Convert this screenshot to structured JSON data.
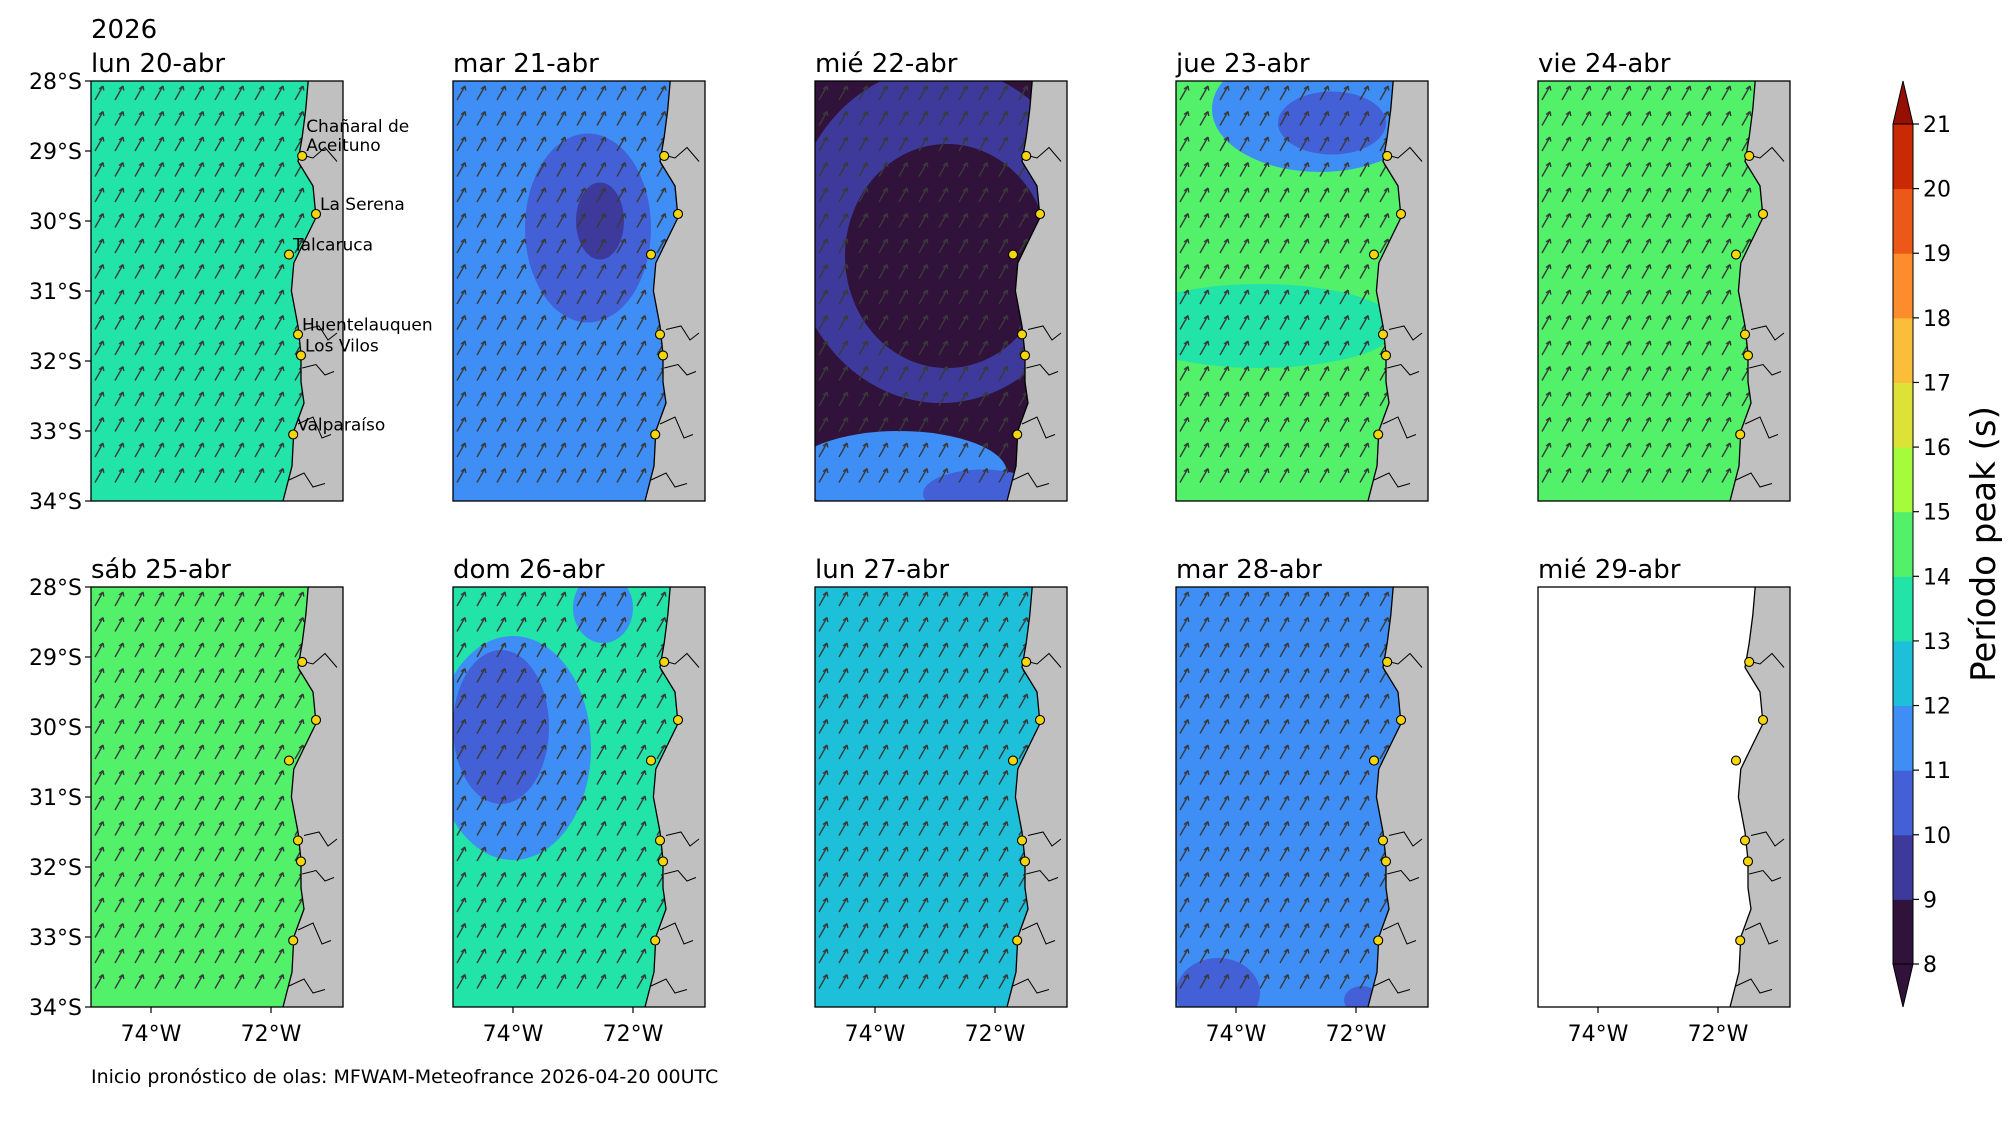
{
  "header": {
    "year": "2026"
  },
  "footer": {
    "text": "Inicio pronóstico de olas: MFWAM-Meteofrance 2026-04-20 00UTC"
  },
  "colorbar": {
    "label": "Período peak (s)",
    "ticks": [
      "8",
      "9",
      "10",
      "11",
      "12",
      "13",
      "14",
      "15",
      "16",
      "17",
      "18",
      "19",
      "20",
      "21"
    ],
    "colors": [
      "#30123b",
      "#3d3a9c",
      "#4360d6",
      "#3e8ef5",
      "#1ebfd9",
      "#22e3a8",
      "#53f06a",
      "#a4fc3c",
      "#dde236",
      "#fbbe3a",
      "#fd8d2c",
      "#ec5818",
      "#c92a04",
      "#951003"
    ],
    "extend": "both"
  },
  "axes": {
    "lat_ticks": [
      "28°S",
      "29°S",
      "30°S",
      "31°S",
      "32°S",
      "33°S",
      "34°S"
    ],
    "lon_ticks": [
      "74°W",
      "72°W"
    ],
    "lat_values": [
      -28,
      -29,
      -30,
      -31,
      -32,
      -33,
      -34
    ],
    "lon_values": [
      -74,
      -72
    ],
    "lon_range": [
      -75.0,
      -70.8
    ],
    "lat_range": [
      -34.0,
      -28.0
    ]
  },
  "land_color": "#c0c0c0",
  "point_color": "#f5d60a",
  "places": [
    {
      "name": "Chañaral de\nAceituno",
      "lon": -71.48,
      "lat": -29.07
    },
    {
      "name": "La Serena",
      "lon": -71.25,
      "lat": -29.9
    },
    {
      "name": "Talcaruca",
      "lon": -71.7,
      "lat": -30.48
    },
    {
      "name": "Huentelauquen",
      "lon": -71.55,
      "lat": -31.62
    },
    {
      "name": "Los Vilos",
      "lon": -71.5,
      "lat": -31.92
    },
    {
      "name": "Valparaíso",
      "lon": -71.63,
      "lat": -33.05
    }
  ],
  "panels": [
    {
      "title": "lun 20-abr",
      "base": 13.5,
      "label_places": true
    },
    {
      "title": "mar 21-abr",
      "base": 11.6
    },
    {
      "title": "mié 22-abr",
      "base": 8.6
    },
    {
      "title": "jue 23-abr",
      "base": 14.2
    },
    {
      "title": "vie 24-abr",
      "base": 14.3
    },
    {
      "title": "sáb 25-abr",
      "base": 14.6
    },
    {
      "title": "dom 26-abr",
      "base": 13.5
    },
    {
      "title": "lun 27-abr",
      "base": 12.6
    },
    {
      "title": "mar 28-abr",
      "base": 11.5
    },
    {
      "title": "mié 29-abr",
      "base": null
    }
  ]
}
